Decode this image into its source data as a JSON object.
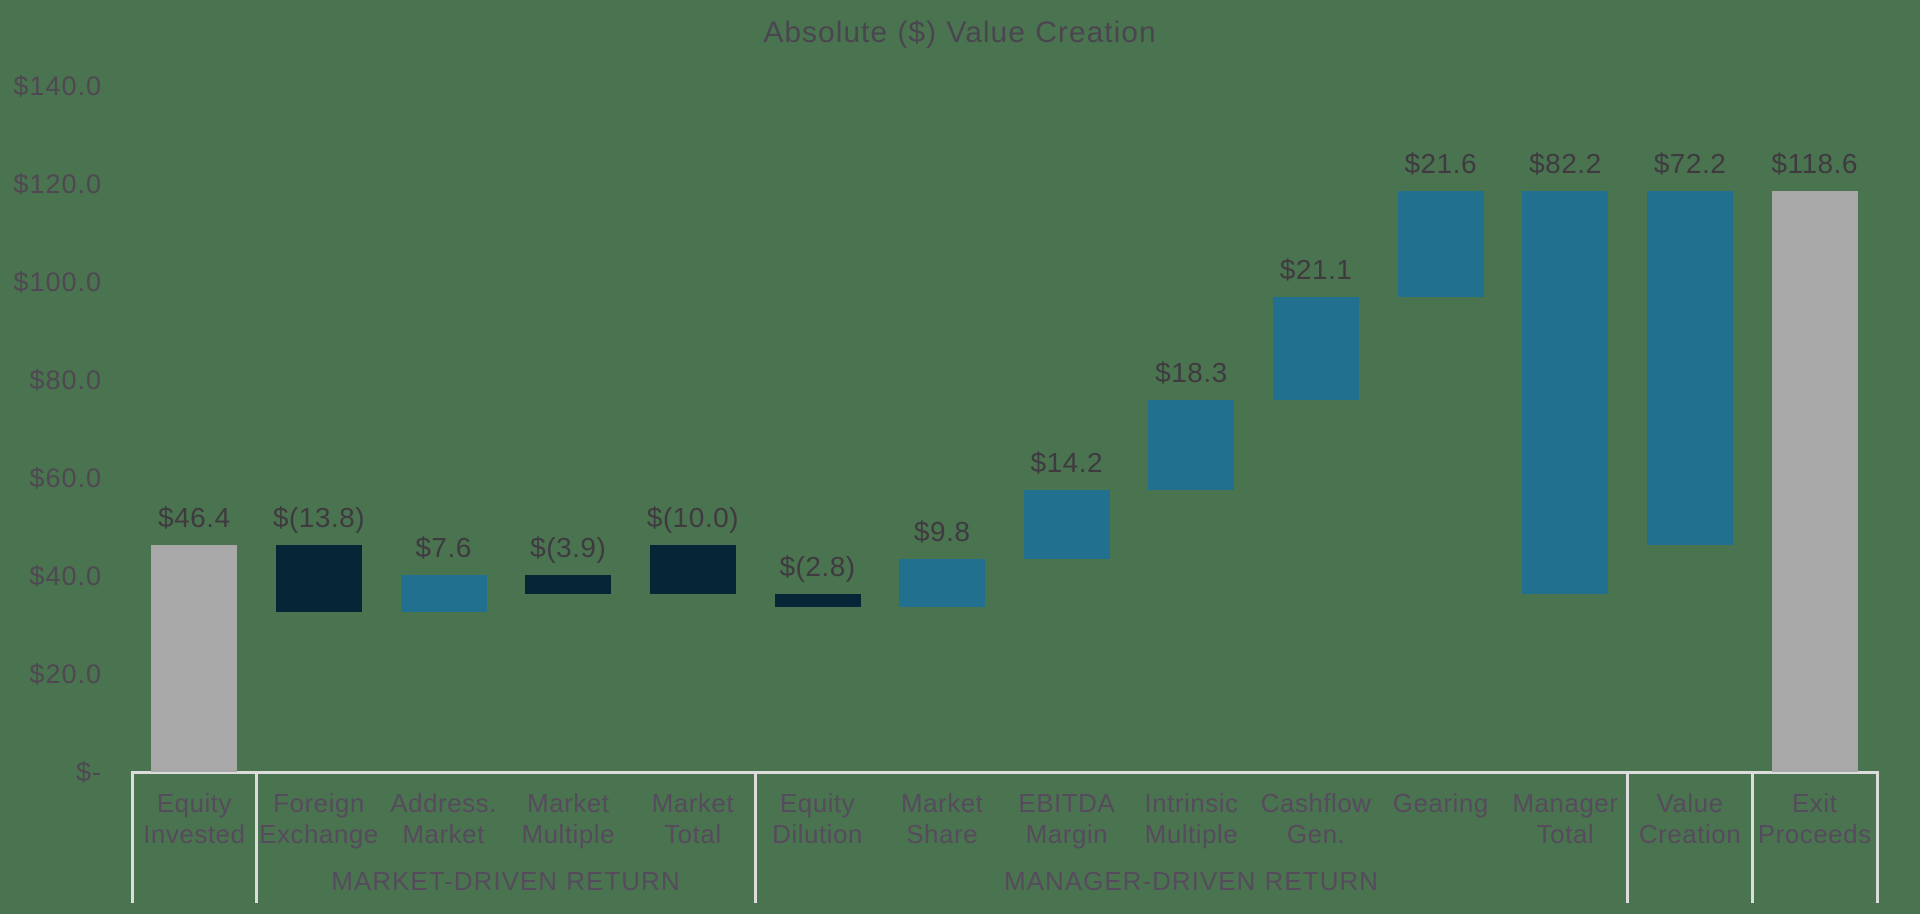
{
  "title": "Absolute ($) Value Creation",
  "colors": {
    "background": "#4a7350",
    "actual": "#a8a8a8",
    "negative": "#052637",
    "positive": "#21708f",
    "axis_line": "#dcdcdc",
    "title_text": "#4a4650",
    "tick_text": "#4f4852",
    "value_text": "#3f3a40",
    "category_text": "#564b5c"
  },
  "y_axis": {
    "ticks": [
      {
        "label": "$140.0",
        "value": 140
      },
      {
        "label": "$120.0",
        "value": 120
      },
      {
        "label": "$100.0",
        "value": 100
      },
      {
        "label": "$80.0",
        "value": 80
      },
      {
        "label": "$60.0",
        "value": 60
      },
      {
        "label": "$40.0",
        "value": 40
      },
      {
        "label": "$20.0",
        "value": 20
      },
      {
        "label": "$-",
        "value": 0
      }
    ]
  },
  "chart_data": {
    "type": "bar",
    "subtype": "waterfall",
    "title": "Absolute ($) Value Creation",
    "xlabel": "",
    "ylabel": "",
    "ylim": [
      0,
      140
    ],
    "grid": false,
    "legend": false,
    "categories": [
      "Equity Invested",
      "Foreign Exchange",
      "Address. Market",
      "Market Multiple",
      "Market Total",
      "Equity Dilution",
      "Market Share",
      "EBITDA Margin",
      "Intrinsic Multiple",
      "Cashflow Gen.",
      "Gearing",
      "Manager Total",
      "Value Creation",
      "Exit Proceeds"
    ],
    "values": [
      46.4,
      -13.8,
      7.6,
      -3.9,
      -10.0,
      -2.8,
      9.8,
      14.2,
      18.3,
      21.1,
      21.6,
      82.2,
      72.2,
      118.6
    ],
    "bars": [
      {
        "name": "equity-invested",
        "label_lines": [
          "Equity",
          "Invested"
        ],
        "value_label": "$46.4",
        "value": 46.4,
        "base": 0,
        "top": 46.4,
        "color": "actual"
      },
      {
        "name": "foreign-exchange",
        "label_lines": [
          "Foreign",
          "Exchange"
        ],
        "value_label": "$(13.8)",
        "value": -13.8,
        "base": 32.6,
        "top": 46.4,
        "color": "negative"
      },
      {
        "name": "address-market",
        "label_lines": [
          "Address.",
          "Market"
        ],
        "value_label": "$7.6",
        "value": 7.6,
        "base": 32.6,
        "top": 40.2,
        "color": "positive"
      },
      {
        "name": "market-multiple",
        "label_lines": [
          "Market",
          "Multiple"
        ],
        "value_label": "$(3.9)",
        "value": -3.9,
        "base": 36.3,
        "top": 40.2,
        "color": "negative"
      },
      {
        "name": "market-total",
        "label_lines": [
          "Market",
          "Total"
        ],
        "value_label": "$(10.0)",
        "value": -10.0,
        "base": 36.4,
        "top": 46.4,
        "color": "negative"
      },
      {
        "name": "equity-dilution",
        "label_lines": [
          "Equity",
          "Dilution"
        ],
        "value_label": "$(2.8)",
        "value": -2.8,
        "base": 33.6,
        "top": 36.4,
        "color": "negative"
      },
      {
        "name": "market-share",
        "label_lines": [
          "Market",
          "Share"
        ],
        "value_label": "$9.8",
        "value": 9.8,
        "base": 33.6,
        "top": 43.4,
        "color": "positive"
      },
      {
        "name": "ebitda-margin",
        "label_lines": [
          "EBITDA",
          "Margin"
        ],
        "value_label": "$14.2",
        "value": 14.2,
        "base": 43.4,
        "top": 57.6,
        "color": "positive"
      },
      {
        "name": "intrinsic-multiple",
        "label_lines": [
          "Intrinsic",
          "Multiple"
        ],
        "value_label": "$18.3",
        "value": 18.3,
        "base": 57.6,
        "top": 75.9,
        "color": "positive"
      },
      {
        "name": "cashflow-gen",
        "label_lines": [
          "Cashflow",
          "Gen."
        ],
        "value_label": "$21.1",
        "value": 21.1,
        "base": 75.9,
        "top": 97.0,
        "color": "positive"
      },
      {
        "name": "gearing",
        "label_lines": [
          "Gearing"
        ],
        "value_label": "$21.6",
        "value": 21.6,
        "base": 97.0,
        "top": 118.6,
        "color": "positive"
      },
      {
        "name": "manager-total",
        "label_lines": [
          "Manager",
          "Total"
        ],
        "value_label": "$82.2",
        "value": 82.2,
        "base": 36.4,
        "top": 118.6,
        "color": "positive"
      },
      {
        "name": "value-creation",
        "label_lines": [
          "Value",
          "Creation"
        ],
        "value_label": "$72.2",
        "value": 72.2,
        "base": 46.4,
        "top": 118.6,
        "color": "positive"
      },
      {
        "name": "exit-proceeds",
        "label_lines": [
          "Exit",
          "Proceeds"
        ],
        "value_label": "$118.6",
        "value": 118.6,
        "base": 0,
        "top": 118.6,
        "color": "actual"
      }
    ],
    "group_boundaries": [
      0,
      1,
      5,
      12,
      13,
      14
    ],
    "groups": [
      {
        "label": "MARKET-DRIVEN RETURN",
        "start_col": 1,
        "end_col": 5
      },
      {
        "label": "MANAGER-DRIVEN RETURN",
        "start_col": 5,
        "end_col": 12
      }
    ]
  }
}
